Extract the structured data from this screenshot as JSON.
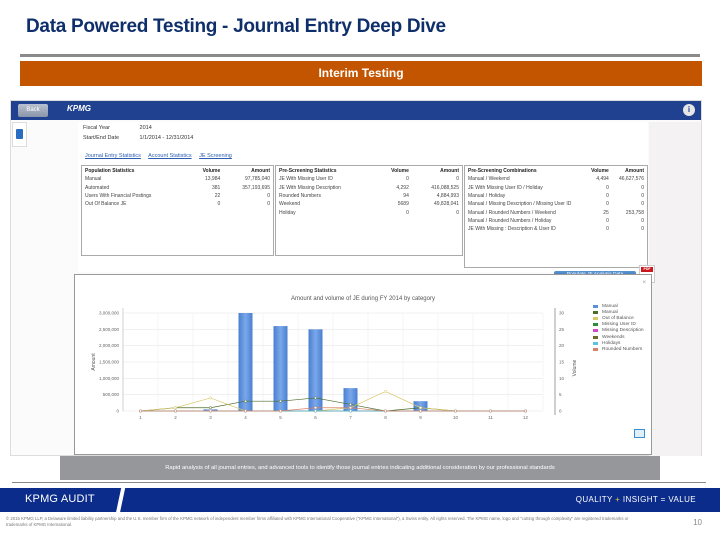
{
  "slide": {
    "title": "Data Powered Testing - Journal Entry Deep Dive",
    "banner": "Interim Testing",
    "caption": "Rapid analysis of all journal entries, and advanced tools to identify those journal entries indicating additional consideration by our professional standards"
  },
  "app": {
    "back_label": "Back",
    "logo": "KPMG",
    "info_icon": "i",
    "meta": {
      "fiscal_year_label": "Fiscal Year",
      "fiscal_year_value": "2014",
      "date_label": "Start/End Date",
      "date_value": "1/1/2014 - 12/31/2014"
    },
    "tabs": [
      {
        "label": "Journal Entry Statistics"
      },
      {
        "label": "Account Statistics"
      },
      {
        "label": "JE Screening"
      }
    ],
    "population_statistics": {
      "headers": [
        "Population Statistics",
        "Volume",
        "Amount"
      ],
      "rows": [
        [
          "Manual",
          "13,984",
          "97,785,040"
        ],
        [
          "Automated",
          "381",
          "357,193,695"
        ],
        [
          "Users With Financial Postings",
          "22",
          "0"
        ],
        [
          "Out Of Balance JE",
          "0",
          "0"
        ]
      ]
    },
    "pre_screening_statistics": {
      "headers": [
        "Pre-Screening Statistics",
        "Volume",
        "Amount"
      ],
      "rows": [
        [
          "JE With Missing User ID",
          "0",
          "0"
        ],
        [
          "JE With Missing Description",
          "4,292",
          "416,088,525"
        ],
        [
          "Rounded Numbers",
          "94",
          "4,884,993"
        ],
        [
          "Weekend",
          "5689",
          "49,828,041"
        ],
        [
          "Holiday",
          "0",
          "0"
        ]
      ]
    },
    "pre_screening_combinations": {
      "headers": [
        "Pre-Screening Combinations",
        "Volume",
        "Amount"
      ],
      "rows": [
        [
          "Manual / Weekend",
          "4,494",
          "46,627,576"
        ],
        [
          "JE With Missing User ID / Holiday",
          "0",
          "0"
        ],
        [
          "Manual / Holiday",
          "0",
          "0"
        ],
        [
          "Manual / Missing Description / Missing User ID",
          "0",
          "0"
        ],
        [
          "Manual / Rounded Numbers / Weekend",
          "25",
          "253,758"
        ],
        [
          "Manual / Rounded Numbers / Holiday",
          "0",
          "0"
        ],
        [
          "JE With Missing : Description & User ID",
          "0",
          "0"
        ]
      ]
    },
    "populate_button": "Populate JE Analysis Data",
    "pdf_icon_label": "PDF",
    "chart_close": "×"
  },
  "chart_data": {
    "type": "bar",
    "title": "Amount and volume of JE during FY 2014 by category",
    "xlabel": "",
    "ylabel": "Amount",
    "y2label": "Volume",
    "categories": [
      "1",
      "2",
      "3",
      "4",
      "5",
      "6",
      "7",
      "8",
      "9",
      "10",
      "11",
      "12"
    ],
    "ylim": [
      0,
      3000000
    ],
    "y2lim": [
      0,
      30
    ],
    "yticks": [
      "0",
      "500,000",
      "1,000,000",
      "1,500,000",
      "2,000,000",
      "2,500,000",
      "3,000,000"
    ],
    "y2ticks": [
      "0",
      "5",
      "10",
      "15",
      "20",
      "25",
      "30"
    ],
    "series": [
      {
        "name": "Manual",
        "type": "bar",
        "axis": "left",
        "color": "#5b8fd9",
        "values": [
          0,
          0,
          50000,
          3000000,
          2600000,
          2500000,
          700000,
          0,
          300000,
          0,
          0,
          0
        ]
      },
      {
        "name": "Manual",
        "type": "line",
        "axis": "right",
        "color": "#4e6b2a",
        "values": [
          0,
          1,
          1,
          3,
          3,
          4,
          2,
          0,
          1,
          0,
          0,
          0
        ]
      },
      {
        "name": "Out of Balance",
        "type": "line",
        "axis": "right",
        "color": "#d9c86b",
        "values": [
          0,
          1,
          4,
          0,
          0,
          0,
          1,
          6,
          1,
          0,
          0,
          0
        ]
      },
      {
        "name": "Missing User ID",
        "type": "line",
        "axis": "right",
        "color": "#2e8b3c",
        "values": [
          0,
          0,
          0,
          0,
          0,
          0,
          0,
          0,
          0,
          0,
          0,
          0
        ]
      },
      {
        "name": "Missing Description",
        "type": "line",
        "axis": "right",
        "color": "#d04ac8",
        "values": [
          0,
          0,
          0,
          0,
          0,
          0,
          0,
          0,
          0,
          0,
          0,
          0
        ]
      },
      {
        "name": "Weekends",
        "type": "line",
        "axis": "right",
        "color": "#6b6b2a",
        "values": [
          0,
          0,
          0,
          0,
          0,
          0,
          0,
          0,
          0,
          0,
          0,
          0
        ]
      },
      {
        "name": "Holidays",
        "type": "line",
        "axis": "right",
        "color": "#58c4dd",
        "values": [
          0,
          0,
          0,
          0,
          0,
          0,
          0,
          0,
          0,
          0,
          0,
          0
        ]
      },
      {
        "name": "Rounded Numbers",
        "type": "line",
        "axis": "right",
        "color": "#d4826a",
        "values": [
          0,
          0,
          0,
          0,
          0,
          1,
          1,
          0,
          0,
          0,
          0,
          0
        ]
      }
    ],
    "legend": [
      "Manual",
      "Manual",
      "Out of Balance",
      "Missing User ID",
      "Missing Description",
      "Weekends",
      "Holidays",
      "Rounded Numbers"
    ],
    "legend_position": "right",
    "grid": true
  },
  "footer": {
    "left": "KPMG  AUDIT",
    "right_quality": "QUALITY ",
    "right_plus": "+",
    "right_rest": " INSIGHT = VALUE",
    "disclaimer": "© 2015 KPMG LLP, a Delaware limited liability partnership and the U.S. member firm of the KPMG network of independent member firms affiliated with KPMG International Cooperative (\"KPMG International\"), a Swiss entity. All rights reserved. The KPMG name, logo and \"cutting through complexity\" are registered trademarks or trademarks of KPMG International.",
    "page_number": "10"
  }
}
